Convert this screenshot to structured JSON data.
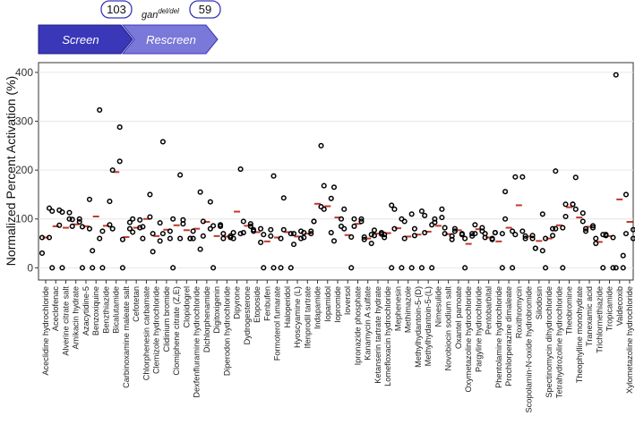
{
  "header": {
    "screen_label": "Screen",
    "rescreen_label": "Rescreen",
    "screen_count": "103",
    "rescreen_count": "59",
    "genotype_base": "gan",
    "genotype_sup": "del/del",
    "screen_color": "#3b37b9",
    "rescreen_color": "#7a78d8"
  },
  "chart_data": {
    "type": "scatter",
    "ylabel": "Normalized Percent Activation (%)",
    "xlabel": "",
    "ylim": [
      -25,
      420
    ],
    "yticks": [
      0,
      100,
      200,
      300,
      400
    ],
    "grid": true,
    "point_style": "open-circle",
    "mean_marker": "red-dash",
    "mean_color": "#c0392b",
    "categories": [
      "Aceclidine hydrochloride",
      "Aceclofenac",
      "Alverine citrate salt",
      "Amikacin hydrate",
      "Azacytidine-5",
      "Benzoxiquine",
      "Benzthiazide",
      "Bicalutamide",
      "Carbinoxamine maleate salt",
      "Cefotetan",
      "Chlorphenesin carbamate",
      "Clemizole hydrochloride",
      "Clidinium bromide",
      "Clomiphene citrate (Z,E)",
      "Clopidogrel",
      "Dexfenfluramine hydrochloride",
      "Dichlorphenamide",
      "Digitoxigenin",
      "Diperodon hydrochloride",
      "Dipyrone",
      "Dydrogesterone",
      "Etoposide",
      "Fenbufen",
      "Formoterol fumarate",
      "Haloperidol",
      "Hyoscyamine (L)",
      "Ifenprodil tartrate",
      "Indapamide",
      "Iopamidol",
      "Iopromide",
      "Ioversol",
      "Ipronazide phosphate",
      "Kanamycin A sulfate",
      "Ketanserin tartrate hydrate",
      "Lomefloxacin hydrochloride",
      "Mephenesin",
      "Methimazole",
      "Methylhydantoin-5-(D)",
      "Methylhydantoin-5-(L)",
      "Nimesulide",
      "Novobiocin sodium salt",
      "Oxantel pamoate",
      "Oxymetazoline hydrochloride",
      "Pargyline hydrochloride",
      "Pentobarbital",
      "Phentolamine hydrochloride",
      "Prochlorperazine dimaleate",
      "Roxithromycin",
      "Scopolamin-N-oxide hydrobromide",
      "Silodosin",
      "Spectinomycin dihydrochloride",
      "Tetrahydrozoline hydrochloride",
      "Theobromine",
      "Theophylline monohydrate",
      "Tranexamic acid",
      "Trichlormethiazide",
      "Tropicamide",
      "Valdecoxib",
      "Xylometazoline hydrochloride"
    ],
    "points": [
      [
        62,
        122,
        62,
        30
      ],
      [
        0,
        118,
        87,
        116
      ],
      [
        0,
        113,
        100,
        114
      ],
      [
        85,
        94,
        100,
        99
      ],
      [
        0,
        140,
        80,
        84
      ],
      [
        0,
        323,
        60,
        35
      ],
      [
        0,
        136,
        88,
        75
      ],
      [
        80,
        288,
        218,
        200
      ],
      [
        0,
        80,
        93,
        58
      ],
      [
        100,
        98,
        82,
        73
      ],
      [
        60,
        150,
        104,
        84
      ],
      [
        70,
        92,
        55,
        33
      ],
      [
        258,
        75,
        60,
        70
      ],
      [
        0,
        190,
        60,
        100
      ],
      [
        98,
        60,
        60,
        90
      ],
      [
        75,
        155,
        38,
        60
      ],
      [
        95,
        135,
        80,
        65
      ],
      [
        0,
        88,
        85,
        86
      ],
      [
        70,
        62,
        65,
        60
      ],
      [
        60,
        70,
        202,
        72
      ],
      [
        95,
        85,
        90,
        72
      ],
      [
        78,
        80,
        52,
        75
      ],
      [
        0,
        65,
        78,
        68
      ],
      [
        188,
        0,
        60,
        0
      ],
      [
        143,
        70,
        0,
        78
      ],
      [
        70,
        75,
        60,
        48
      ],
      [
        62,
        70,
        75,
        72
      ],
      [
        95,
        250,
        125,
        95
      ],
      [
        120,
        72,
        142,
        168
      ],
      [
        165,
        85,
        100,
        55
      ],
      [
        120,
        0,
        63,
        80
      ],
      [
        85,
        100,
        95,
        100
      ],
      [
        58,
        50,
        68,
        63
      ],
      [
        77,
        72,
        69,
        66
      ],
      [
        62,
        0,
        128,
        68
      ],
      [
        120,
        0,
        100,
        80
      ],
      [
        95,
        110,
        0,
        60
      ],
      [
        66,
        116,
        0,
        80
      ],
      [
        107,
        0,
        88,
        72
      ],
      [
        93,
        120,
        103,
        100
      ],
      [
        82,
        58,
        65,
        70
      ],
      [
        75,
        70,
        68,
        80
      ],
      [
        0,
        65,
        70,
        60
      ],
      [
        88,
        82,
        75,
        70
      ],
      [
        70,
        58,
        60,
        62
      ],
      [
        72,
        70,
        0,
        72
      ],
      [
        156,
        75,
        0,
        100
      ],
      [
        186,
        75,
        186,
        68
      ],
      [
        65,
        60,
        66,
        60
      ],
      [
        40,
        35,
        110,
        40
      ],
      [
        0,
        80,
        66,
        60
      ],
      [
        198,
        0,
        82,
        80
      ],
      [
        130,
        130,
        130,
        105
      ],
      [
        185,
        95,
        112,
        120
      ],
      [
        80,
        82,
        86,
        75
      ],
      [
        60,
        0,
        68,
        50
      ],
      [
        66,
        0,
        62,
        68
      ],
      [
        395,
        0,
        25,
        0
      ],
      [
        150,
        60,
        78,
        70
      ]
    ],
    "means": [
      62,
      85,
      82,
      89,
      85,
      105,
      86,
      196,
      63,
      82,
      100,
      65,
      78,
      87,
      77,
      80,
      94,
      65,
      64,
      115,
      86,
      73,
      54,
      62,
      73,
      64,
      70,
      131,
      126,
      103,
      67,
      90,
      60,
      70,
      71,
      81,
      64,
      68,
      74,
      86,
      69,
      77,
      49,
      79,
      62,
      54,
      82,
      128,
      64,
      55,
      60,
      87,
      124,
      103,
      84,
      53,
      65,
      140,
      94
    ]
  }
}
